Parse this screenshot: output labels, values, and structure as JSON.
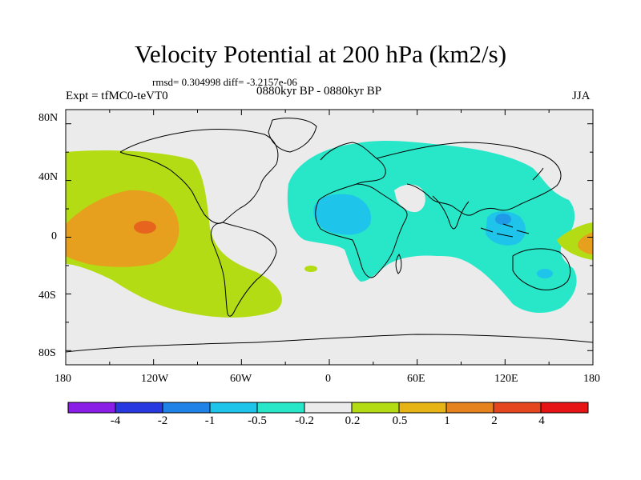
{
  "title": "Velocity Potential at 200 hPa (km2/s)",
  "stats": "rmsd= 0.304998 diff= -3.2157e-06",
  "expt": "Expt = tfMC0-teVT0",
  "period": "0880kyr BP - 0880kyr BP",
  "season": "JJA",
  "map": {
    "y_ticks": [
      "80N",
      "40N",
      "0",
      "40S",
      "80S"
    ],
    "x_ticks": [
      "180",
      "120W",
      "60W",
      "0",
      "60E",
      "120E",
      "180"
    ]
  },
  "colorbar": {
    "colors": [
      "#8a1ee6",
      "#2838e0",
      "#1e82e6",
      "#1ec4ea",
      "#28e6c8",
      "#ebebeb",
      "#b4dc14",
      "#e6b414",
      "#e6821e",
      "#e6461e",
      "#e61414"
    ],
    "labels": [
      "-4",
      "-2",
      "-1",
      "-0.5",
      "-0.2",
      "0.2",
      "0.5",
      "1",
      "2",
      "4"
    ]
  },
  "colors": {
    "background": "#ebebeb",
    "green": "#b4dc14",
    "orange": "#e6a01e",
    "dark_orange": "#e6641e",
    "teal": "#28e6c8",
    "cyan": "#1ec4ea",
    "blue": "#1e9ae6"
  }
}
